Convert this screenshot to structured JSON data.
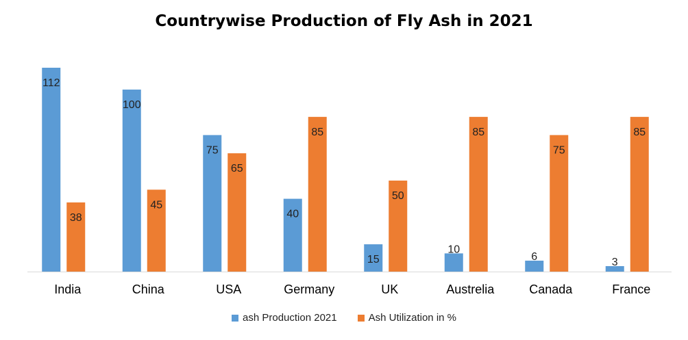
{
  "chart_data": {
    "type": "bar",
    "title": "Countrywise Production of Fly Ash in 2021",
    "xlabel": "",
    "ylabel": "",
    "ylim": [
      0,
      112
    ],
    "categories": [
      "India",
      "China",
      "USA",
      "Germany",
      "UK",
      "Austrelia",
      "Canada",
      "France"
    ],
    "series": [
      {
        "name": "ash Production 2021",
        "color": "#5B9BD5",
        "values": [
          112,
          100,
          75,
          40,
          15,
          10,
          6,
          3
        ]
      },
      {
        "name": "Ash Utilization in %",
        "color": "#ED7D31",
        "values": [
          38,
          45,
          65,
          85,
          50,
          85,
          75,
          85
        ]
      }
    ],
    "legend": "bottom",
    "grid": false,
    "data_labels": true
  }
}
